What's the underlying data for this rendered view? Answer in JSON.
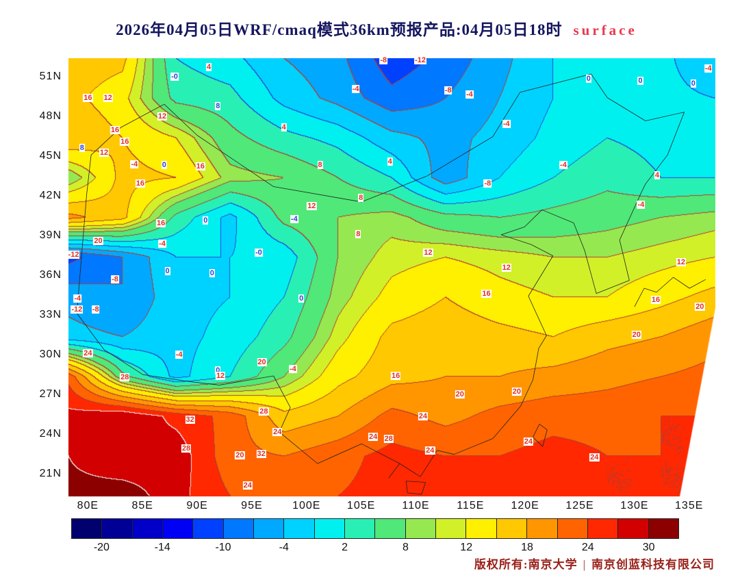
{
  "title": {
    "main": "2026年04月05日WRF/cmaq模式36km预报产品:04月05日18时",
    "suffix": "surface"
  },
  "axes": {
    "lat": [
      "51N",
      "48N",
      "45N",
      "42N",
      "39N",
      "36N",
      "33N",
      "30N",
      "27N",
      "24N",
      "21N"
    ],
    "lon": [
      "80E",
      "85E",
      "90E",
      "95E",
      "100E",
      "105E",
      "110E",
      "115E",
      "120E",
      "125E",
      "130E",
      "135E"
    ]
  },
  "colorbar": {
    "labels": [
      "-20",
      "-14",
      "-10",
      "-4",
      "2",
      "8",
      "12",
      "18",
      "24",
      "30"
    ]
  },
  "footer": {
    "copyright_left": "版权所有:南京大学",
    "separator": "|",
    "copyright_right": "南京创蓝科技有限公司"
  },
  "chart_data": {
    "type": "heatmap",
    "title": "2026年04月05日WRF/cmaq模式36km预报产品:04月05日18时 surface",
    "lon_ticks": [
      "80E",
      "85E",
      "90E",
      "95E",
      "100E",
      "105E",
      "110E",
      "115E",
      "120E",
      "125E",
      "130E",
      "135E"
    ],
    "lat_ticks": [
      "51N",
      "48N",
      "45N",
      "42N",
      "39N",
      "36N",
      "33N",
      "30N",
      "27N",
      "24N",
      "21N"
    ],
    "colorbar_tick_values": [
      -20,
      -14,
      -10,
      -4,
      2,
      8,
      12,
      18,
      24,
      30
    ],
    "levels": [
      -20,
      -17,
      -14,
      -12,
      -10,
      -7,
      -4,
      -1,
      2,
      5,
      8,
      10,
      12,
      15,
      18,
      21,
      24,
      27,
      30
    ],
    "colors": [
      "#00006e",
      "#000096",
      "#0000c8",
      "#0000f5",
      "#0041ff",
      "#0078ff",
      "#00a8ff",
      "#00d2ff",
      "#00f0f0",
      "#28f0b4",
      "#50e878",
      "#96e850",
      "#d2f028",
      "#fff000",
      "#ffc800",
      "#ff9600",
      "#ff6400",
      "#ff2800",
      "#d20000",
      "#8c0000"
    ],
    "contour_line_colors": {
      "warm": "#b43c32",
      "cold": "#2847d7",
      "hot": "#e6e6e6"
    },
    "grid": {
      "lons": [
        79.7,
        84.5,
        89.3,
        94.1,
        98.9,
        103.7,
        108.5,
        113.3,
        118.1,
        122.9,
        127.7,
        132.5,
        137.3
      ],
      "lats": [
        52.4,
        49.4,
        46.4,
        43.4,
        40.4,
        37.4,
        34.3,
        31.3,
        28.3,
        25.3,
        22.3,
        19.3
      ],
      "values": [
        [
          17,
          16,
          2,
          0,
          -4,
          -6,
          -12,
          -9,
          -5,
          -1,
          0,
          0,
          -4
        ],
        [
          16,
          13,
          4,
          3,
          -2,
          -5,
          -9,
          -7,
          -4,
          -1,
          0,
          0,
          -1
        ],
        [
          18,
          15,
          12,
          6,
          3,
          1,
          -3,
          -5,
          -3,
          0,
          2,
          1,
          0
        ],
        [
          8,
          16,
          15,
          9,
          8,
          5,
          2,
          -6,
          -1,
          2,
          4,
          2,
          2
        ],
        [
          19,
          16,
          4,
          -2,
          6,
          8,
          9,
          6,
          5,
          6,
          7,
          8,
          9
        ],
        [
          -11,
          -7,
          -1,
          -1,
          0,
          8,
          11,
          12,
          11,
          10,
          10,
          11,
          12
        ],
        [
          -5,
          -7,
          -2,
          -1,
          2,
          9,
          13,
          15,
          13,
          12,
          12,
          14,
          16
        ],
        [
          -3,
          -4,
          -2,
          0,
          4,
          11,
          16,
          17,
          16,
          15,
          17,
          18,
          20
        ],
        [
          23,
          6,
          -2,
          2,
          8,
          14,
          17,
          18,
          18,
          19,
          20,
          21,
          22
        ],
        [
          28,
          30,
          26,
          23,
          16,
          18,
          22,
          20,
          22,
          23,
          23,
          24,
          24
        ],
        [
          30,
          27,
          29,
          22,
          21,
          23,
          25,
          24,
          24,
          25,
          24,
          24,
          24
        ],
        [
          31,
          32,
          28,
          24,
          22,
          24,
          25,
          25,
          25,
          25,
          24,
          24,
          24
        ]
      ]
    },
    "contour_labels": [
      {
        "t": "-8",
        "x": 48.7,
        "y": 0.5,
        "c": "r"
      },
      {
        "t": "-12",
        "x": 54.4,
        "y": 0.5,
        "c": "r"
      },
      {
        "t": "4",
        "x": 21.7,
        "y": 2.0,
        "c": "r"
      },
      {
        "t": "-4",
        "x": 98.9,
        "y": 2.3,
        "c": "r"
      },
      {
        "t": "-0",
        "x": 16.4,
        "y": 4.2,
        "c": "b"
      },
      {
        "t": "0",
        "x": 80.4,
        "y": 4.7,
        "c": "b"
      },
      {
        "t": "0",
        "x": 88.4,
        "y": 5.2,
        "c": "b"
      },
      {
        "t": "0",
        "x": 96.6,
        "y": 5.8,
        "c": "b"
      },
      {
        "t": "-4",
        "x": 44.4,
        "y": 7.0,
        "c": "r"
      },
      {
        "t": "-8",
        "x": 58.7,
        "y": 7.3,
        "c": "r"
      },
      {
        "t": "-4",
        "x": 62.0,
        "y": 8.3,
        "c": "r"
      },
      {
        "t": "16",
        "x": 3.0,
        "y": 9.1,
        "c": "r"
      },
      {
        "t": "12",
        "x": 6.1,
        "y": 9.1,
        "c": "r"
      },
      {
        "t": "8",
        "x": 23.1,
        "y": 10.9,
        "c": "b"
      },
      {
        "t": "12",
        "x": 14.5,
        "y": 13.3,
        "c": "r"
      },
      {
        "t": "-4",
        "x": 67.7,
        "y": 15.0,
        "c": "r"
      },
      {
        "t": "4",
        "x": 33.3,
        "y": 15.8,
        "c": "r"
      },
      {
        "t": "16",
        "x": 7.2,
        "y": 16.4,
        "c": "r"
      },
      {
        "t": "16",
        "x": 8.7,
        "y": 19.1,
        "c": "r"
      },
      {
        "t": "8",
        "x": 2.1,
        "y": 20.5,
        "c": "b"
      },
      {
        "t": "12",
        "x": 5.5,
        "y": 21.6,
        "c": "r"
      },
      {
        "t": "4",
        "x": 49.7,
        "y": 23.6,
        "c": "r"
      },
      {
        "t": "-4",
        "x": 10.2,
        "y": 24.2,
        "c": "r"
      },
      {
        "t": "0",
        "x": 14.8,
        "y": 24.4,
        "c": "b"
      },
      {
        "t": "8",
        "x": 38.9,
        "y": 24.4,
        "c": "r"
      },
      {
        "t": "-4",
        "x": 76.5,
        "y": 24.4,
        "c": "r"
      },
      {
        "t": "16",
        "x": 20.4,
        "y": 24.7,
        "c": "r"
      },
      {
        "t": "4",
        "x": 91.0,
        "y": 26.7,
        "c": "r"
      },
      {
        "t": "16",
        "x": 11.1,
        "y": 28.6,
        "c": "r"
      },
      {
        "t": "-8",
        "x": 64.8,
        "y": 28.6,
        "c": "r"
      },
      {
        "t": "8",
        "x": 45.2,
        "y": 31.9,
        "c": "r"
      },
      {
        "t": "-4",
        "x": 88.5,
        "y": 33.4,
        "c": "r"
      },
      {
        "t": "12",
        "x": 37.6,
        "y": 33.8,
        "c": "r"
      },
      {
        "t": "0",
        "x": 21.2,
        "y": 37.0,
        "c": "b"
      },
      {
        "t": "-4",
        "x": 34.9,
        "y": 36.7,
        "c": "b"
      },
      {
        "t": "16",
        "x": 14.3,
        "y": 37.7,
        "c": "r"
      },
      {
        "t": "8",
        "x": 44.8,
        "y": 40.2,
        "c": "r"
      },
      {
        "t": "20",
        "x": 4.6,
        "y": 41.7,
        "c": "r"
      },
      {
        "t": "-4",
        "x": 14.5,
        "y": 42.3,
        "c": "r"
      },
      {
        "t": "-0",
        "x": 29.4,
        "y": 44.4,
        "c": "b"
      },
      {
        "t": "12",
        "x": 55.6,
        "y": 44.4,
        "c": "r"
      },
      {
        "t": "-12",
        "x": 0.8,
        "y": 44.8,
        "c": "r"
      },
      {
        "t": "12",
        "x": 94.7,
        "y": 46.6,
        "c": "r"
      },
      {
        "t": "12",
        "x": 67.7,
        "y": 47.8,
        "c": "r"
      },
      {
        "t": "0",
        "x": 15.3,
        "y": 48.6,
        "c": "b"
      },
      {
        "t": "0",
        "x": 22.2,
        "y": 49.1,
        "c": "b"
      },
      {
        "t": "-8",
        "x": 7.2,
        "y": 50.5,
        "c": "r"
      },
      {
        "t": "16",
        "x": 64.6,
        "y": 53.8,
        "c": "r"
      },
      {
        "t": "-4",
        "x": 1.4,
        "y": 54.8,
        "c": "r"
      },
      {
        "t": "0",
        "x": 36.0,
        "y": 54.8,
        "c": "b"
      },
      {
        "t": "16",
        "x": 90.8,
        "y": 55.2,
        "c": "r"
      },
      {
        "t": "20",
        "x": 97.6,
        "y": 56.7,
        "c": "r"
      },
      {
        "t": "-12",
        "x": 1.3,
        "y": 57.3,
        "c": "r"
      },
      {
        "t": "-8",
        "x": 4.2,
        "y": 57.3,
        "c": "r"
      },
      {
        "t": "20",
        "x": 87.8,
        "y": 63.1,
        "c": "r"
      },
      {
        "t": "24",
        "x": 3.0,
        "y": 67.3,
        "c": "r"
      },
      {
        "t": "-4",
        "x": 17.1,
        "y": 67.7,
        "c": "r"
      },
      {
        "t": "20",
        "x": 29.9,
        "y": 69.4,
        "c": "r"
      },
      {
        "t": "-4",
        "x": 34.7,
        "y": 70.9,
        "c": "r"
      },
      {
        "t": "0",
        "x": 23.1,
        "y": 71.2,
        "c": "b"
      },
      {
        "t": "12",
        "x": 23.5,
        "y": 72.5,
        "c": "r"
      },
      {
        "t": "16",
        "x": 50.6,
        "y": 72.5,
        "c": "r"
      },
      {
        "t": "28",
        "x": 8.7,
        "y": 72.8,
        "c": "r"
      },
      {
        "t": "20",
        "x": 69.3,
        "y": 76.1,
        "c": "r"
      },
      {
        "t": "20",
        "x": 60.5,
        "y": 76.7,
        "c": "r"
      },
      {
        "t": "28",
        "x": 30.2,
        "y": 80.6,
        "c": "r"
      },
      {
        "t": "24",
        "x": 54.8,
        "y": 81.7,
        "c": "r"
      },
      {
        "t": "32",
        "x": 18.8,
        "y": 82.5,
        "c": "r"
      },
      {
        "t": "24",
        "x": 32.3,
        "y": 85.3,
        "c": "r"
      },
      {
        "t": "24",
        "x": 47.1,
        "y": 86.4,
        "c": "r"
      },
      {
        "t": "28",
        "x": 49.5,
        "y": 86.9,
        "c": "r"
      },
      {
        "t": "24",
        "x": 71.1,
        "y": 87.5,
        "c": "r"
      },
      {
        "t": "28",
        "x": 18.2,
        "y": 89.1,
        "c": "r"
      },
      {
        "t": "24",
        "x": 55.9,
        "y": 89.5,
        "c": "r"
      },
      {
        "t": "32",
        "x": 29.8,
        "y": 90.3,
        "c": "r"
      },
      {
        "t": "20",
        "x": 26.5,
        "y": 90.6,
        "c": "r"
      },
      {
        "t": "24",
        "x": 81.3,
        "y": 91.1,
        "c": "r"
      },
      {
        "t": "24",
        "x": 27.7,
        "y": 97.5,
        "c": "r"
      }
    ]
  }
}
